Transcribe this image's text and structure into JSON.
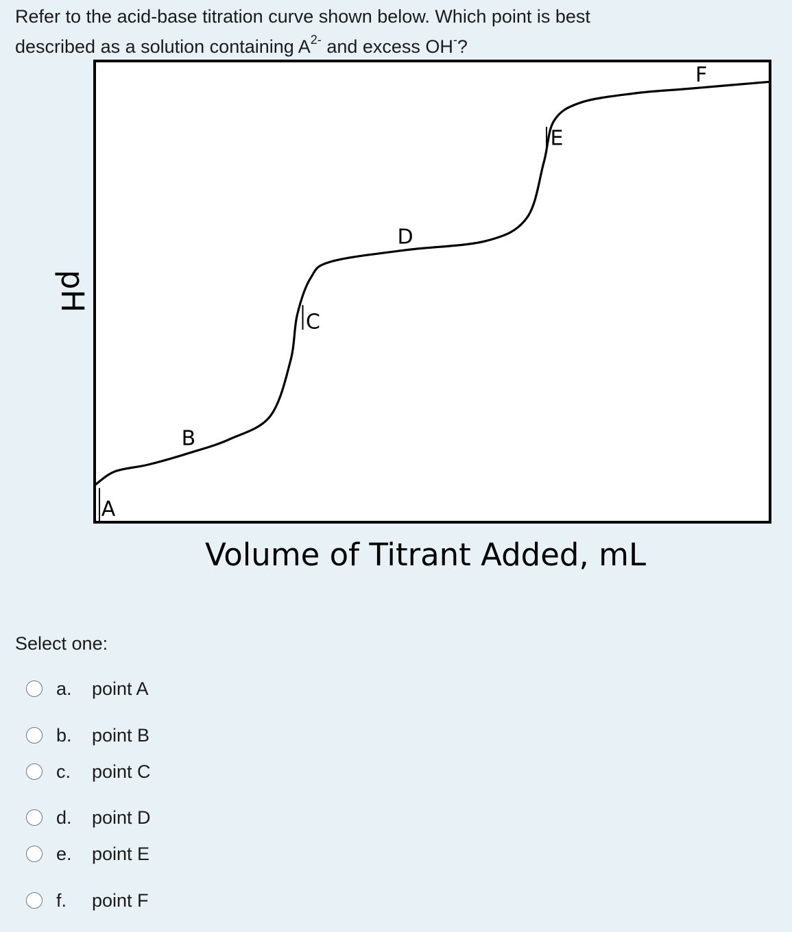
{
  "question": {
    "line1": "Refer to the acid-base titration curve shown below. Which point is best",
    "line2_pre": "described as a solution containing A",
    "line2_sup": "2-",
    "line2_mid": " and excess OH",
    "line2_sup2": "-",
    "line2_post": "?"
  },
  "chart_data": {
    "type": "line",
    "title": "",
    "xlabel": "Volume of Titrant Added, mL",
    "ylabel": "pH",
    "x_ticks": false,
    "y_ticks": false,
    "grid": false,
    "legend": "none",
    "line_color": "#000000",
    "series": [
      {
        "values": [
          {
            "x": 0.0,
            "y": 0.08
          },
          {
            "x": 0.03,
            "y": 0.11
          },
          {
            "x": 0.08,
            "y": 0.125
          },
          {
            "x": 0.14,
            "y": 0.15
          },
          {
            "x": 0.2,
            "y": 0.18
          },
          {
            "x": 0.26,
            "y": 0.23
          },
          {
            "x": 0.29,
            "y": 0.35
          },
          {
            "x": 0.3,
            "y": 0.45
          },
          {
            "x": 0.32,
            "y": 0.53
          },
          {
            "x": 0.35,
            "y": 0.565
          },
          {
            "x": 0.46,
            "y": 0.59
          },
          {
            "x": 0.58,
            "y": 0.61
          },
          {
            "x": 0.64,
            "y": 0.66
          },
          {
            "x": 0.665,
            "y": 0.78
          },
          {
            "x": 0.68,
            "y": 0.87
          },
          {
            "x": 0.72,
            "y": 0.91
          },
          {
            "x": 0.8,
            "y": 0.93
          },
          {
            "x": 0.88,
            "y": 0.94
          },
          {
            "x": 1.0,
            "y": 0.955
          }
        ]
      }
    ],
    "point_labels": [
      {
        "label": "A",
        "x": 0.0,
        "y": 0.08
      },
      {
        "label": "B",
        "x": 0.14,
        "y": 0.15
      },
      {
        "label": "C",
        "x": 0.3,
        "y": 0.45
      },
      {
        "label": "D",
        "x": 0.46,
        "y": 0.59
      },
      {
        "label": "E",
        "x": 0.665,
        "y": 0.78
      },
      {
        "label": "F",
        "x": 0.88,
        "y": 0.94
      }
    ]
  },
  "select_label": "Select one:",
  "options": [
    {
      "letter": "a.",
      "text": "point A"
    },
    {
      "letter": "b.",
      "text": "point B"
    },
    {
      "letter": "c.",
      "text": "point C"
    },
    {
      "letter": "d.",
      "text": "point D"
    },
    {
      "letter": "e.",
      "text": "point E"
    },
    {
      "letter": "f.",
      "text": "point F"
    }
  ]
}
